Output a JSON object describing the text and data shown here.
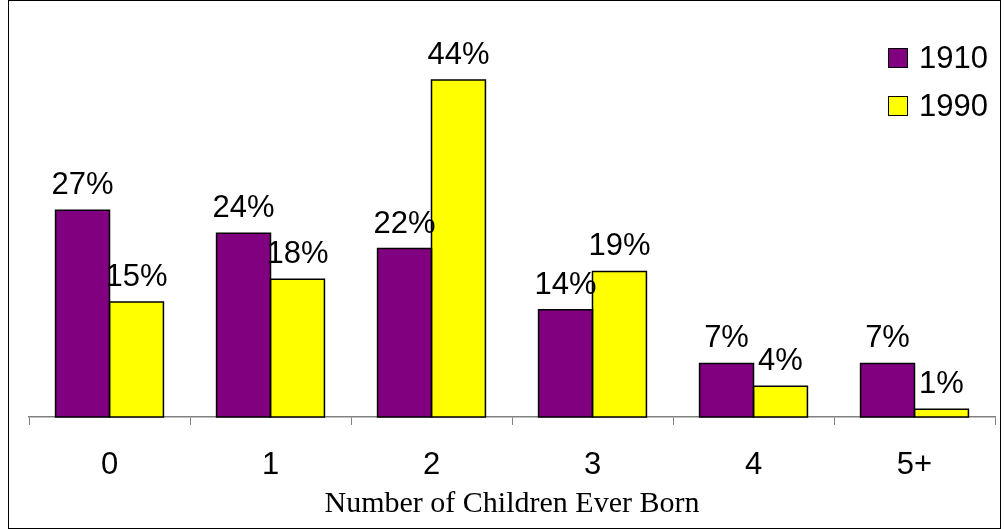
{
  "chart_data": {
    "type": "bar",
    "xlabel": "Number of Children Ever Born",
    "categories": [
      "0",
      "1",
      "2",
      "3",
      "4",
      "5+"
    ],
    "series": [
      {
        "name": "1910",
        "color": "#800080",
        "values": [
          27,
          24,
          22,
          14,
          7,
          7
        ],
        "value_labels": [
          "27%",
          "24%",
          "22%",
          "14%",
          "7%",
          "7%"
        ]
      },
      {
        "name": "1990",
        "color": "#ffff00",
        "values": [
          15,
          18,
          44,
          19,
          4,
          1
        ],
        "value_labels": [
          "15%",
          "18%",
          "44%",
          "19%",
          "4%",
          "1%"
        ]
      }
    ],
    "legend": "top right",
    "tick_labels": "x"
  }
}
